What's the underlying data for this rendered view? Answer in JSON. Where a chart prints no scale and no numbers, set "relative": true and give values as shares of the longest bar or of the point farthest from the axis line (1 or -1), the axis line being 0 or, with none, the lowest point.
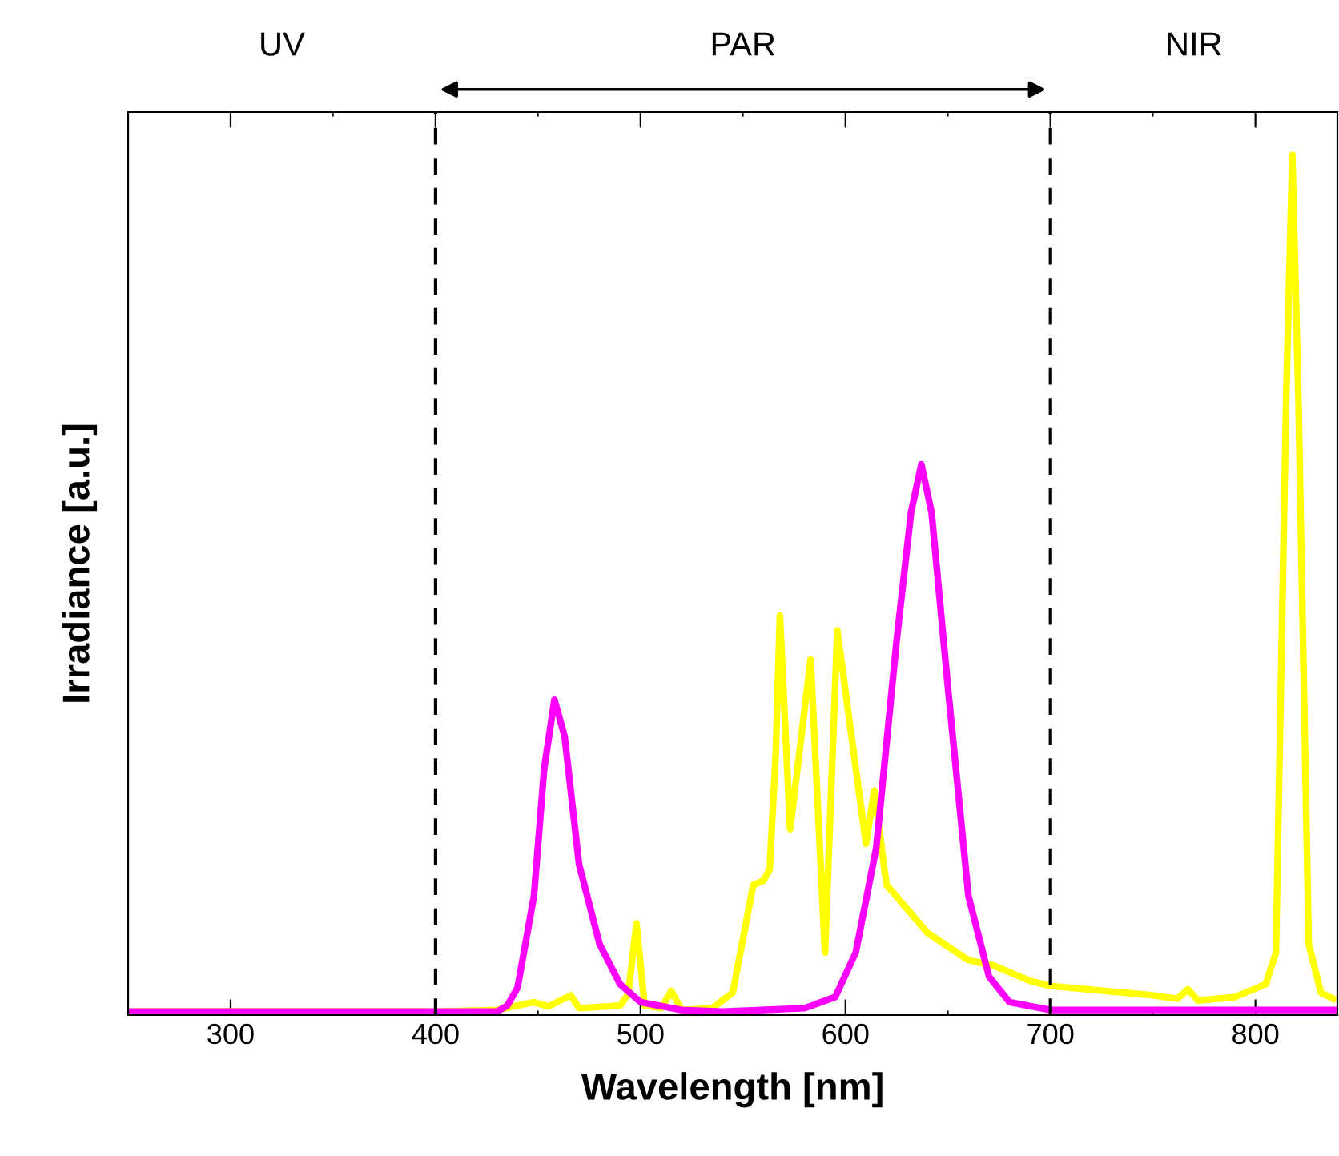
{
  "chart_data": {
    "type": "line",
    "xlabel": "Wavelength [nm]",
    "ylabel": "Irradiance [a.u.]",
    "relative": true,
    "xlim": [
      250,
      840
    ],
    "xticks": [
      300,
      400,
      500,
      600,
      700,
      800
    ],
    "grid": false,
    "legend": false,
    "series": [
      {
        "color": "#ffff00",
        "x": [
          250,
          400,
          430,
          448,
          455,
          466,
          470,
          490,
          494,
          498,
          502,
          510,
          515,
          520,
          535,
          545,
          555,
          560,
          563,
          566,
          568,
          573,
          583,
          590,
          596,
          610,
          614,
          620,
          640,
          660,
          672,
          690,
          700,
          750,
          762,
          767,
          772,
          790,
          805,
          810,
          815,
          818,
          821,
          826,
          832,
          838
        ],
        "values": [
          0,
          0,
          0.002,
          0.011,
          0.006,
          0.019,
          0.004,
          0.007,
          0.02,
          0.103,
          0.007,
          0.004,
          0.024,
          0.002,
          0.004,
          0.022,
          0.148,
          0.153,
          0.166,
          0.303,
          0.462,
          0.213,
          0.411,
          0.069,
          0.445,
          0.196,
          0.258,
          0.148,
          0.092,
          0.06,
          0.054,
          0.036,
          0.03,
          0.019,
          0.015,
          0.026,
          0.013,
          0.017,
          0.032,
          0.069,
          0.714,
          1,
          0.714,
          0.079,
          0.022,
          0.015
        ]
      },
      {
        "color": "#ff00ff",
        "x": [
          250,
          430,
          435,
          440,
          448,
          453,
          458,
          463,
          470,
          480,
          490,
          500,
          520,
          540,
          580,
          595,
          605,
          615,
          625,
          632,
          637,
          642,
          650,
          660,
          670,
          680,
          700,
          838
        ],
        "values": [
          0,
          0,
          0.007,
          0.028,
          0.135,
          0.284,
          0.364,
          0.321,
          0.172,
          0.079,
          0.032,
          0.011,
          0.002,
          0,
          0.004,
          0.017,
          0.069,
          0.191,
          0.434,
          0.583,
          0.639,
          0.583,
          0.378,
          0.135,
          0.041,
          0.011,
          0.002,
          0.002
        ]
      }
    ],
    "ref_lines": [
      {
        "axis": "x",
        "value": 400,
        "color": "#000000",
        "line_style": "dashed"
      },
      {
        "axis": "x",
        "value": 700,
        "color": "#000000",
        "line_style": "dashed"
      }
    ],
    "annotations": [
      "UV",
      "PAR",
      "NIR"
    ]
  }
}
